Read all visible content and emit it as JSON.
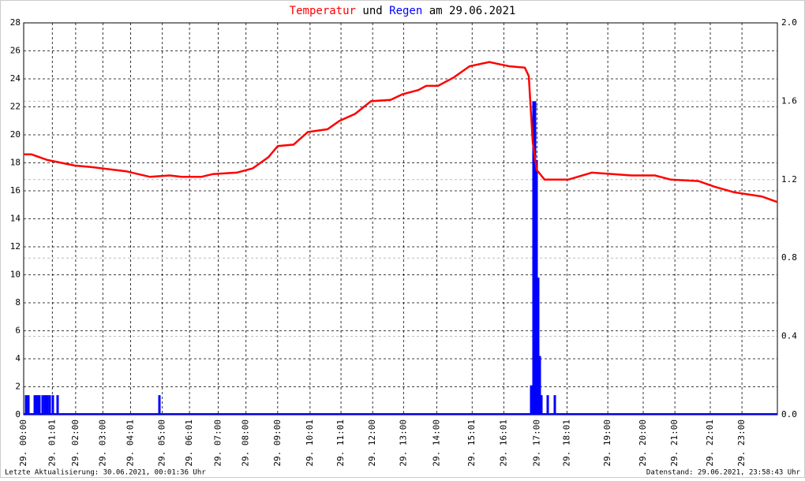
{
  "chart_data": {
    "type": "line",
    "title_parts": [
      "Temperatur",
      "und",
      "Regen",
      "am 29.06.2021"
    ],
    "footer_left": "Letzte Aktualisierung: 30.06.2021, 00:01:36 Uhr",
    "footer_right": "Datenstand: 29.06.2021, 23:58:43 Uhr",
    "xlim": [
      0,
      100
    ],
    "xticks": [
      {
        "value": 0,
        "label": "29. 00:00"
      },
      {
        "value": 3.8,
        "label": "29. 01:01"
      },
      {
        "value": 6.9,
        "label": "29. 02:00"
      },
      {
        "value": 10.5,
        "label": "29. 03:00"
      },
      {
        "value": 14.2,
        "label": "29. 04:01"
      },
      {
        "value": 18.4,
        "label": "29. 05:00"
      },
      {
        "value": 22.0,
        "label": "29. 06:01"
      },
      {
        "value": 25.8,
        "label": "29. 07:00"
      },
      {
        "value": 29.5,
        "label": "29. 08:00"
      },
      {
        "value": 33.7,
        "label": "29. 09:00"
      },
      {
        "value": 38.0,
        "label": "29. 10:01"
      },
      {
        "value": 42.1,
        "label": "29. 11:01"
      },
      {
        "value": 46.3,
        "label": "29. 12:00"
      },
      {
        "value": 50.4,
        "label": "29. 13:00"
      },
      {
        "value": 54.8,
        "label": "29. 14:00"
      },
      {
        "value": 59.5,
        "label": "29. 15:01"
      },
      {
        "value": 63.7,
        "label": "29. 16:01"
      },
      {
        "value": 68.1,
        "label": "29. 17:00"
      },
      {
        "value": 72.1,
        "label": "29. 18:01"
      },
      {
        "value": 77.5,
        "label": "29. 19:00"
      },
      {
        "value": 82.2,
        "label": "29. 20:00"
      },
      {
        "value": 86.4,
        "label": "29. 21:00"
      },
      {
        "value": 91.1,
        "label": "29. 22:01"
      },
      {
        "value": 95.3,
        "label": "29. 23:00"
      }
    ],
    "ylim": [
      0,
      28
    ],
    "yticks": [
      0,
      2,
      4,
      6,
      8,
      10,
      12,
      14,
      16,
      18,
      20,
      22,
      24,
      26,
      28
    ],
    "y2lim": [
      0,
      2
    ],
    "y2ticks": [
      {
        "value": 0,
        "label": "0.0"
      },
      {
        "value": 0.4,
        "label": "0.4"
      },
      {
        "value": 0.8,
        "label": "0.8"
      },
      {
        "value": 1.2,
        "label": "1.2"
      },
      {
        "value": 1.6,
        "label": "1.6"
      },
      {
        "value": 2,
        "label": "2.0"
      }
    ],
    "grid": true,
    "series": [
      {
        "name": "Temperatur",
        "color": "#ff0000",
        "kind": "line",
        "x": [
          0,
          1.05,
          3.14,
          6.81,
          8.9,
          13.6,
          16.75,
          19.37,
          20.94,
          23.56,
          25.13,
          28.27,
          30.37,
          32.46,
          33.72,
          35.81,
          37.7,
          40.31,
          41.88,
          43.98,
          46.07,
          48.69,
          50.26,
          52.36,
          53.4,
          54.97,
          57.07,
          59.16,
          61.78,
          64.4,
          66.49,
          67.02,
          67.54,
          68.06,
          69.11,
          72.25,
          75.39,
          80.63,
          83.77,
          85.86,
          89.53,
          91.62,
          94.24,
          97.91,
          100
        ],
        "values": [
          18.6,
          18.6,
          18.2,
          17.8,
          17.7,
          17.4,
          17.0,
          17.1,
          17.0,
          17.0,
          17.2,
          17.3,
          17.6,
          18.4,
          19.2,
          19.3,
          20.2,
          20.4,
          21.0,
          21.5,
          22.4,
          22.5,
          22.9,
          23.2,
          23.5,
          23.5,
          24.1,
          24.9,
          25.2,
          24.9,
          24.8,
          24.2,
          19.5,
          17.5,
          16.8,
          16.8,
          17.3,
          17.1,
          17.1,
          16.8,
          16.7,
          16.3,
          15.9,
          15.6,
          15.2
        ]
      },
      {
        "name": "Regen",
        "color": "#0000ff",
        "kind": "bar",
        "axis": "y2",
        "x": [
          0.31,
          0.63,
          1.47,
          1.78,
          2.09,
          2.51,
          2.83,
          3.14,
          3.46,
          3.87,
          4.5,
          18.01,
          67.33,
          67.64,
          67.85,
          68.06,
          68.27,
          68.48,
          68.69,
          69.53,
          70.47
        ],
        "values": [
          0.1,
          0.1,
          0.1,
          0.1,
          0.1,
          0.1,
          0.1,
          0.1,
          0.1,
          0.1,
          0.1,
          0.1,
          0.15,
          1.6,
          1.6,
          1.3,
          0.7,
          0.3,
          0.1,
          0.1,
          0.1
        ]
      }
    ]
  }
}
